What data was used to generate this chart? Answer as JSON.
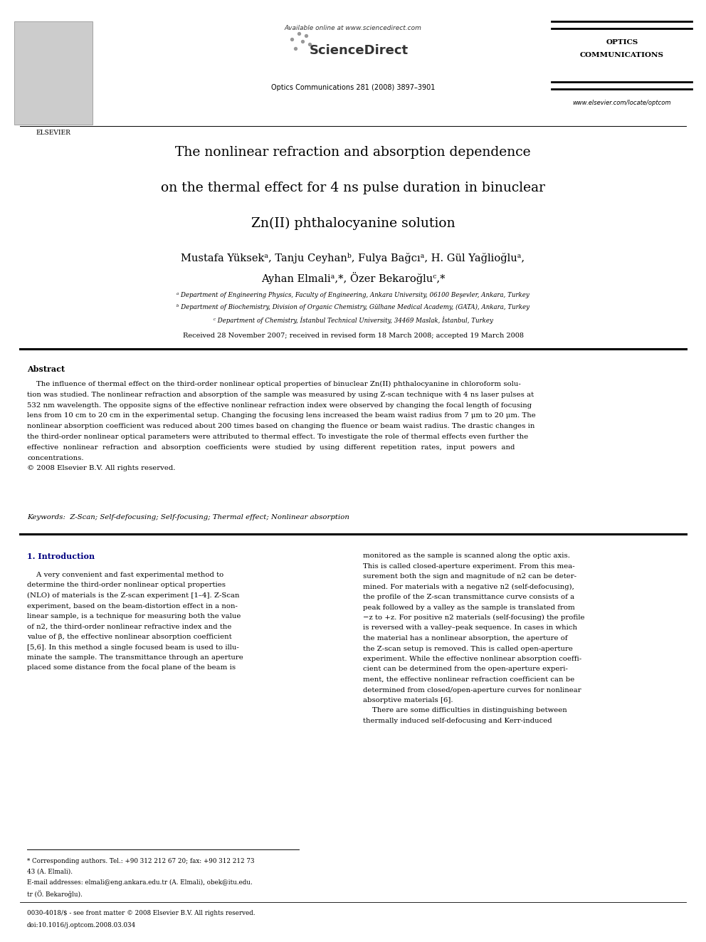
{
  "page_width": 9.92,
  "page_height": 13.23,
  "bg_color": "#ffffff",
  "header_available_online": "Available online at www.sciencedirect.com",
  "header_sciencedirect": "ScienceDirect",
  "header_journal": "Optics Communications 281 (2008) 3897–3901",
  "header_optics_line1": "OPTICS",
  "header_optics_line2": "COMMUNICATIONS",
  "header_website": "www.elsevier.com/locate/optcom",
  "header_elsevier": "ELSEVIER",
  "title_line1": "The nonlinear refraction and absorption dependence",
  "title_line2": "on the thermal effect for 4 ns pulse duration in binuclear",
  "title_line3": "Zn(II) phthalocyanine solution",
  "authors_line1": "Mustafa Yüksekᵃ, Tanju Ceyhanᵇ, Fulya Bağcıᵃ, H. Gül Yağlioğluᵃ,",
  "authors_line2": "Ayhan Elmaliᵃ,*, Özer Bekaroğluᶜ,*",
  "affil_a": "ᵃ Department of Engineering Physics, Faculty of Engineering, Ankara University, 06100 Beşevler, Ankara, Turkey",
  "affil_b": "ᵇ Department of Biochemistry, Division of Organic Chemistry, Gülhane Medical Academy, (GATA), Ankara, Turkey",
  "affil_c": "ᶜ Department of Chemistry, İstanbul Technical University, 34469 Maslak, İstanbul, Turkey",
  "received": "Received 28 November 2007; received in revised form 18 March 2008; accepted 19 March 2008",
  "abstract_head": "Abstract",
  "abstract_lines": [
    "    The influence of thermal effect on the third-order nonlinear optical properties of binuclear Zn(II) phthalocyanine in chloroform solu-",
    "tion was studied. The nonlinear refraction and absorption of the sample was measured by using Z-scan technique with 4 ns laser pulses at",
    "532 nm wavelength. The opposite signs of the effective nonlinear refraction index were observed by changing the focal length of focusing",
    "lens from 10 cm to 20 cm in the experimental setup. Changing the focusing lens increased the beam waist radius from 7 μm to 20 μm. The",
    "nonlinear absorption coefficient was reduced about 200 times based on changing the fluence or beam waist radius. The drastic changes in",
    "the third-order nonlinear optical parameters were attributed to thermal effect. To investigate the role of thermal effects even further the",
    "effective  nonlinear  refraction  and  absorption  coefficients  were  studied  by  using  different  repetition  rates,  input  powers  and",
    "concentrations.",
    "© 2008 Elsevier B.V. All rights reserved."
  ],
  "keywords_text": "Keywords:  Z-Scan; Self-defocusing; Self-focusing; Thermal effect; Nonlinear absorption",
  "intro_head": "1. Introduction",
  "intro_col1_lines": [
    "    A very convenient and fast experimental method to",
    "determine the third-order nonlinear optical properties",
    "(NLO) of materials is the Z-scan experiment [1–4]. Z-Scan",
    "experiment, based on the beam-distortion effect in a non-",
    "linear sample, is a technique for measuring both the value",
    "of n2, the third-order nonlinear refractive index and the",
    "value of β, the effective nonlinear absorption coefficient",
    "[5,6]. In this method a single focused beam is used to illu-",
    "minate the sample. The transmittance through an aperture",
    "placed some distance from the focal plane of the beam is"
  ],
  "intro_col2_lines": [
    "monitored as the sample is scanned along the optic axis.",
    "This is called closed-aperture experiment. From this mea-",
    "surement both the sign and magnitude of n2 can be deter-",
    "mined. For materials with a negative n2 (self-defocusing),",
    "the profile of the Z-scan transmittance curve consists of a",
    "peak followed by a valley as the sample is translated from",
    "−z to +z. For positive n2 materials (self-focusing) the profile",
    "is reversed with a valley–peak sequence. In cases in which",
    "the material has a nonlinear absorption, the aperture of",
    "the Z-scan setup is removed. This is called open-aperture",
    "experiment. While the effective nonlinear absorption coeffi-",
    "cient can be determined from the open-aperture experi-",
    "ment, the effective nonlinear refraction coefficient can be",
    "determined from closed/open-aperture curves for nonlinear",
    "absorptive materials [6].",
    "    There are some difficulties in distinguishing between",
    "thermally induced self-defocusing and Kerr-induced"
  ],
  "footnote1": "* Corresponding authors. Tel.: +90 312 212 67 20; fax: +90 312 212 73",
  "footnote2": "43 (A. Elmali).",
  "footnote3": "E-mail addresses: elmali@eng.ankara.edu.tr (A. Elmali), obek@itu.edu.",
  "footnote4": "tr (Ö. Bekaroğlu).",
  "footer1": "0030-4018/$ - see front matter © 2008 Elsevier B.V. All rights reserved.",
  "footer2": "doi:10.1016/j.optcom.2008.03.034"
}
